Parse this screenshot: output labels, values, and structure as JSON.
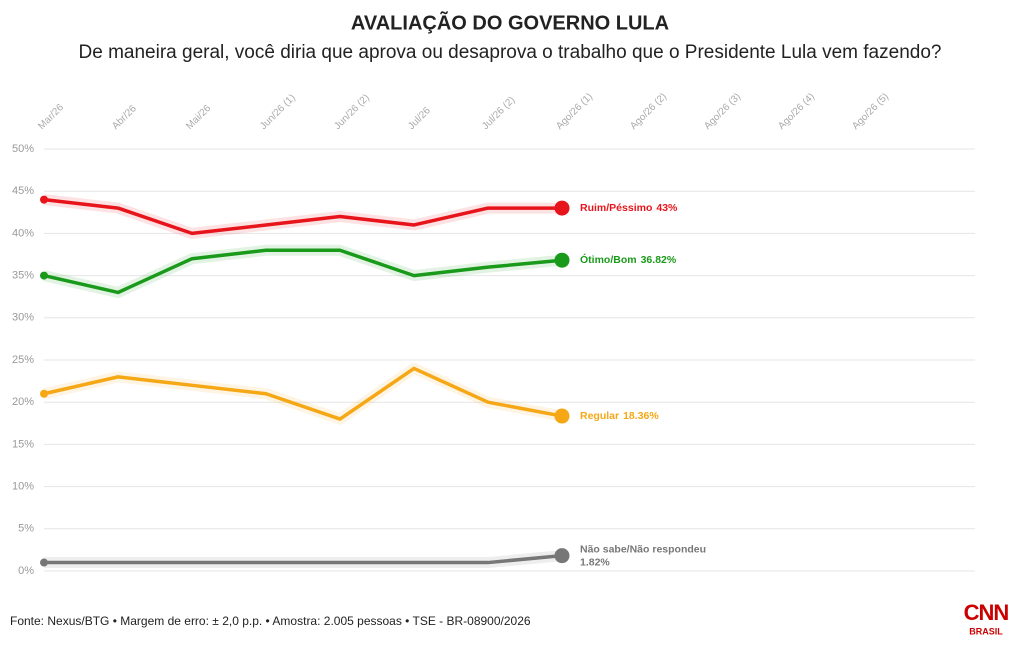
{
  "chart_data": {
    "type": "line",
    "title": "AVALIAÇÃO DO GOVERNO LULA",
    "subtitle": "De maneira geral, você diria que aprova ou desaprova o trabalho que o Presidente Lula vem fazendo?",
    "categories": [
      "Mar/26",
      "Abr/26",
      "Mai/26",
      "Jun/26 (1)",
      "Jun/26 (2)",
      "Jul/26",
      "Jul/26 (2)",
      "Ago/26 (1)",
      "Ago/26 (2)",
      "Ago/26 (3)",
      "Ago/26 (4)",
      "Ago/26 (5)"
    ],
    "series": [
      {
        "name": "Ruim/Péssimo",
        "color": "#e8141b",
        "values": [
          44,
          43,
          40,
          41,
          42,
          41,
          43,
          43,
          null,
          null,
          null,
          null
        ],
        "value_labels": [
          null,
          null,
          null,
          null,
          null,
          null,
          null,
          "43%",
          null,
          null,
          null,
          null
        ]
      },
      {
        "name": "Ótimo/Bom",
        "color": "#1a9a1a",
        "values": [
          35,
          33,
          37,
          38,
          38,
          35,
          36,
          36.82,
          null,
          null,
          null,
          null
        ],
        "value_labels": [
          null,
          null,
          null,
          null,
          null,
          null,
          null,
          "36.82%",
          null,
          null,
          null,
          null
        ]
      },
      {
        "name": "Regular",
        "color": "#f5a716",
        "values": [
          21,
          23,
          22,
          21,
          18,
          24,
          20,
          18.36,
          null,
          null,
          null,
          null
        ],
        "value_labels": [
          null,
          null,
          null,
          null,
          null,
          null,
          null,
          "18.36%",
          null,
          null,
          null,
          null
        ]
      },
      {
        "name": "Não sabe/Não respondeu",
        "color": "#777777",
        "values": [
          1,
          1,
          1,
          1,
          1,
          1,
          1,
          1.82,
          null,
          null,
          null,
          null
        ],
        "value_labels": [
          null,
          null,
          null,
          null,
          null,
          null,
          null,
          "1.82%",
          null,
          null,
          null,
          null
        ]
      }
    ],
    "ylim": [
      0,
      50
    ],
    "yticks": [
      {
        "value": 0,
        "label": "0%"
      },
      {
        "value": 5,
        "label": "5%"
      },
      {
        "value": 10,
        "label": "10%"
      },
      {
        "value": 15,
        "label": "15%"
      },
      {
        "value": 20,
        "label": "20%"
      },
      {
        "value": 25,
        "label": "25%"
      },
      {
        "value": 30,
        "label": "30%"
      },
      {
        "value": 35,
        "label": "35%"
      },
      {
        "value": 40,
        "label": "40%"
      },
      {
        "value": 45,
        "label": "45%"
      },
      {
        "value": 50,
        "label": "50%"
      }
    ],
    "grid": true,
    "source": "Fonte: Nexus/BTG • Margem de erro: ± 2,0 p.p. • Amostra: 2.005 pessoas • TSE - BR-08900/2026",
    "logo": {
      "brand": "CNN",
      "sub": "BRASIL"
    }
  }
}
